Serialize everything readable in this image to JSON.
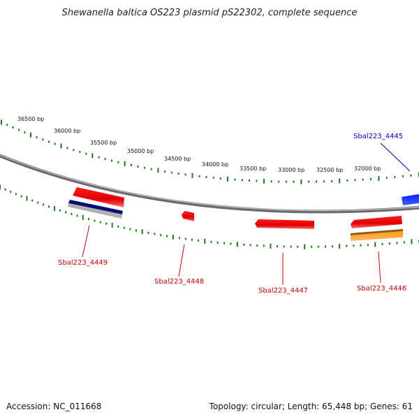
{
  "title": "Shewanella baltica OS223 plasmid pS22302, complete sequence",
  "accession_text": "Accession: NC_011668",
  "summary_text": "Topology: circular; Length: 65,448 bp; Genes: 61",
  "tick_labels": [
    "36500 bp",
    "36000 bp",
    "35500 bp",
    "35000 bp",
    "34500 bp",
    "34000 bp",
    "33500 bp",
    "33000 bp",
    "32500 bp",
    "32000 bp"
  ],
  "genes": [
    {
      "name": "Sbal223_4445",
      "color": "#0000cc"
    },
    {
      "name": "Sbal223_4446",
      "color": "#cc0000"
    },
    {
      "name": "Sbal223_4447",
      "color": "#cc0000"
    },
    {
      "name": "Sbal223_4448",
      "color": "#cc0000"
    },
    {
      "name": "Sbal223_4449",
      "color": "#cc0000"
    }
  ],
  "colors": {
    "backbone": "#808080",
    "tick_green": "#1a7a1a",
    "feature_red": "#ff0000",
    "feature_blue": "#0000ff",
    "feature_navy": "#0a0a7a",
    "feature_gray": "#b0b0b0",
    "feature_orange": "#ff8c00",
    "feature_brown": "#8b5a10"
  }
}
